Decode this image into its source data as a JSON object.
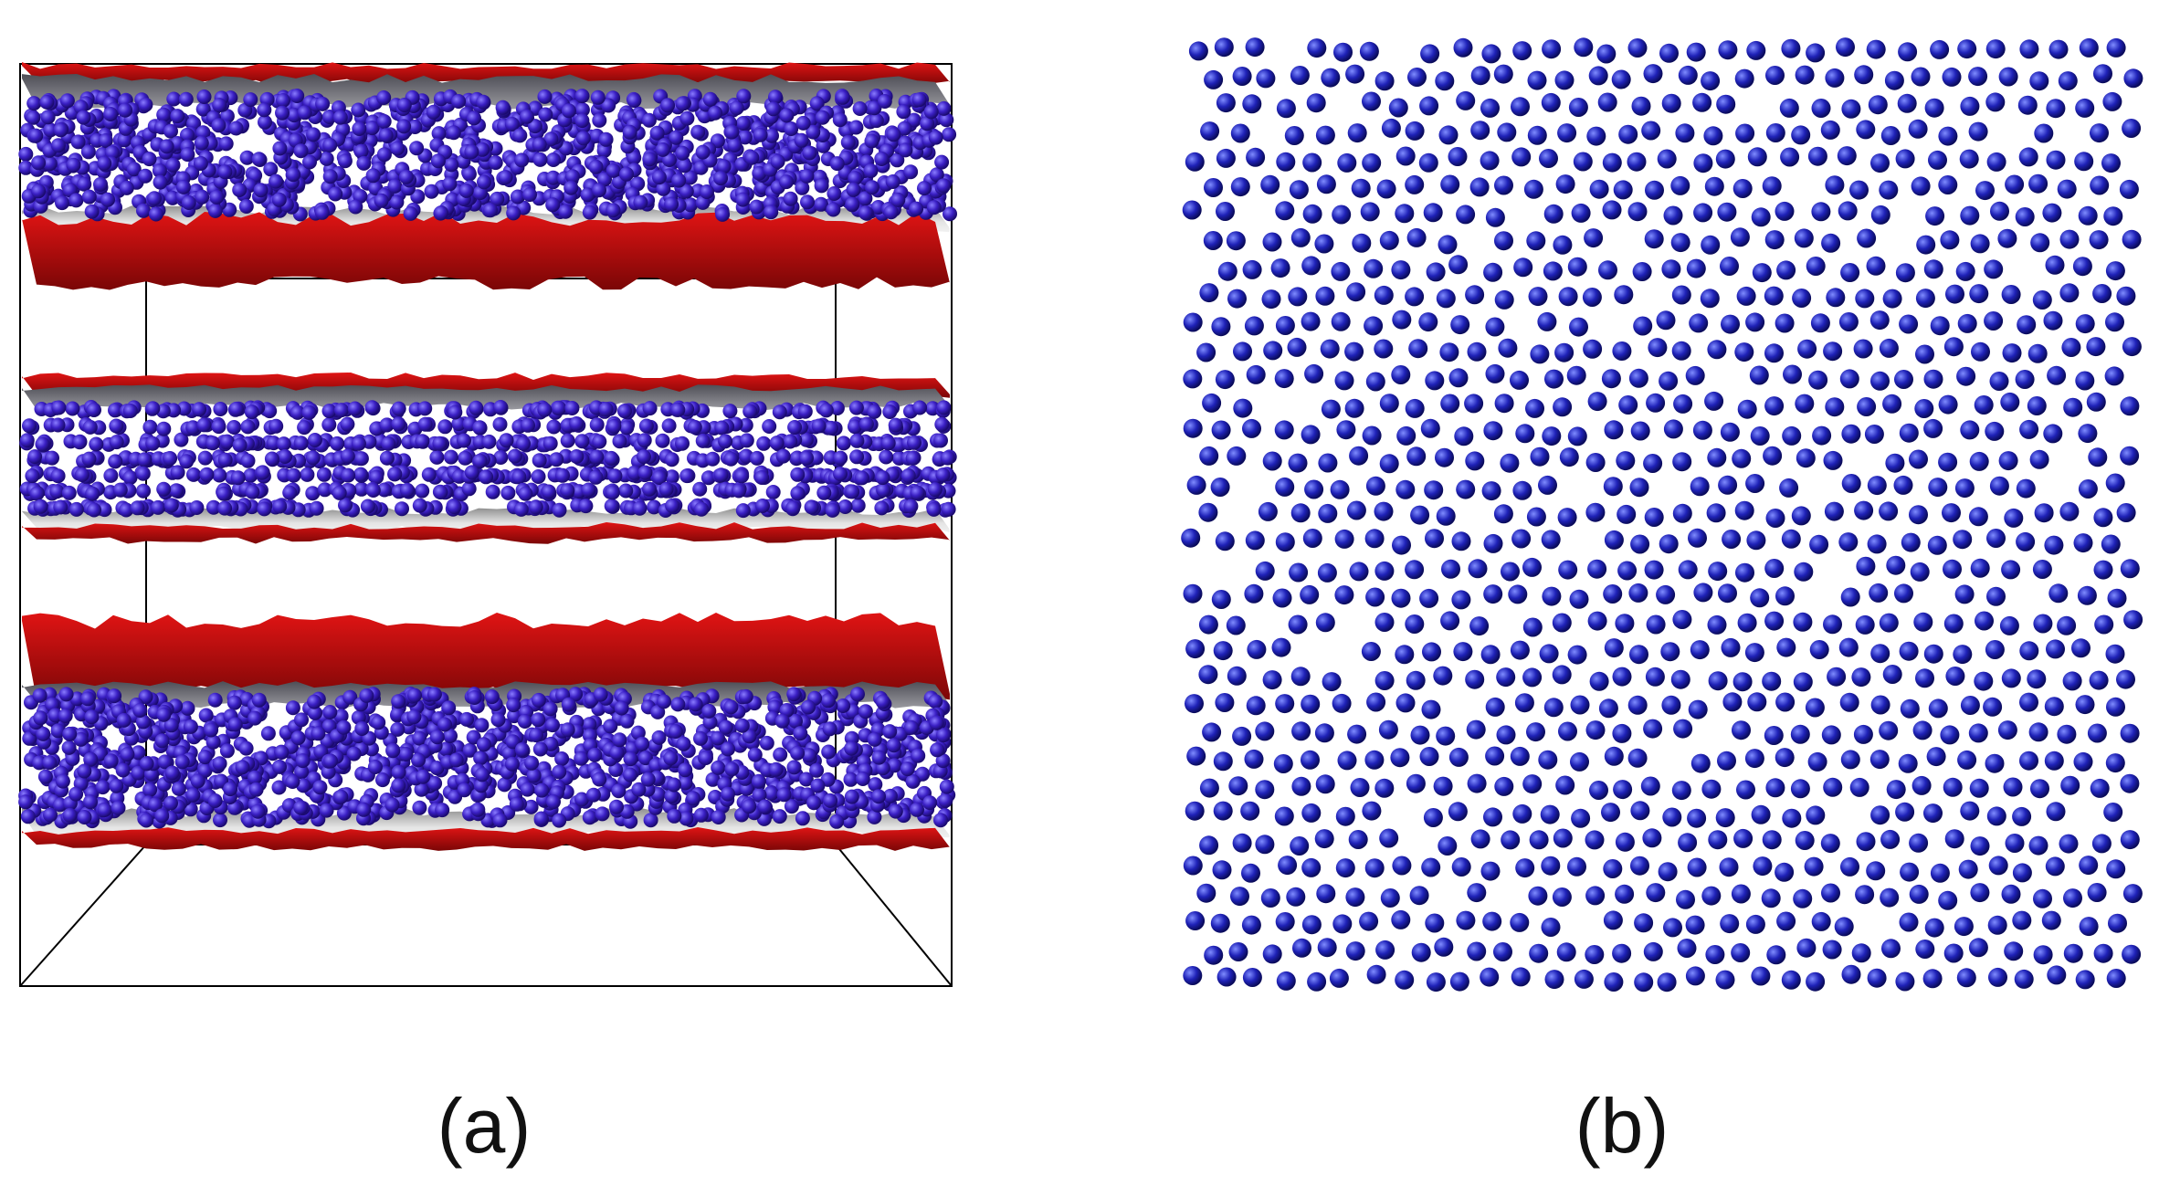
{
  "captions": {
    "a": "(a)",
    "b": "(b)"
  },
  "colors": {
    "particle": "#3a1fc4",
    "particle_b": "#1f22b8",
    "membrane_red": "#c40d0d",
    "membrane_dark_red": "#8a0a0a",
    "membrane_grey": "#6e6e74",
    "membrane_light": "#d9d9d9",
    "box_line": "#000000"
  },
  "panel_a": {
    "description_layers": [
      "top-layer",
      "middle-layer",
      "bottom-layer"
    ],
    "icon": "simulation-box-icon"
  },
  "panel_b": {
    "icon": "particle-monolayer-icon"
  }
}
